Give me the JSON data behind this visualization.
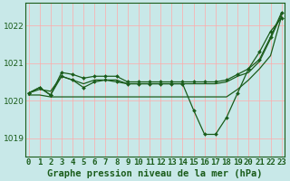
{
  "background_color": "#c8e8e8",
  "grid_color": "#ffaaaa",
  "line_color": "#1a5c1a",
  "title": "Graphe pression niveau de la mer (hPa)",
  "xlabel_ticks": [
    "0",
    "1",
    "2",
    "3",
    "4",
    "5",
    "6",
    "7",
    "8",
    "9",
    "10",
    "11",
    "12",
    "13",
    "14",
    "15",
    "16",
    "17",
    "18",
    "19",
    "20",
    "21",
    "22",
    "23"
  ],
  "yticks": [
    1019,
    1020,
    1021,
    1022
  ],
  "ylim": [
    1018.5,
    1022.6
  ],
  "xlim": [
    -0.3,
    23.3
  ],
  "series": [
    {
      "y": [
        1020.2,
        1020.35,
        1020.15,
        1020.65,
        1020.55,
        1020.35,
        1020.5,
        1020.55,
        1020.5,
        1020.45,
        1020.45,
        1020.45,
        1020.45,
        1020.45,
        1020.45,
        1019.75,
        1019.1,
        1019.1,
        1019.55,
        1020.2,
        1020.85,
        1021.3,
        1021.85,
        1022.2
      ],
      "marker": true
    },
    {
      "y": [
        1020.15,
        1020.15,
        1020.1,
        1020.1,
        1020.1,
        1020.1,
        1020.1,
        1020.1,
        1020.1,
        1020.1,
        1020.1,
        1020.1,
        1020.1,
        1020.1,
        1020.1,
        1020.1,
        1020.1,
        1020.1,
        1020.1,
        1020.3,
        1020.55,
        1020.85,
        1021.2,
        1022.25
      ],
      "marker": false
    },
    {
      "y": [
        1020.2,
        1020.3,
        1020.25,
        1020.65,
        1020.55,
        1020.45,
        1020.55,
        1020.55,
        1020.55,
        1020.45,
        1020.45,
        1020.45,
        1020.45,
        1020.45,
        1020.45,
        1020.45,
        1020.45,
        1020.45,
        1020.5,
        1020.65,
        1020.75,
        1021.05,
        1021.65,
        1022.3
      ],
      "marker": false
    },
    {
      "y": [
        1020.2,
        1020.35,
        1020.15,
        1020.75,
        1020.7,
        1020.6,
        1020.65,
        1020.65,
        1020.65,
        1020.5,
        1020.5,
        1020.5,
        1020.5,
        1020.5,
        1020.5,
        1020.5,
        1020.5,
        1020.5,
        1020.55,
        1020.7,
        1020.85,
        1021.1,
        1021.7,
        1022.35
      ],
      "marker": true
    }
  ],
  "marker": "D",
  "markersize": 2.0,
  "linewidth": 0.9,
  "font_color": "#1a5c1a",
  "tick_fontsize": 6.5,
  "label_fontsize": 7.5
}
